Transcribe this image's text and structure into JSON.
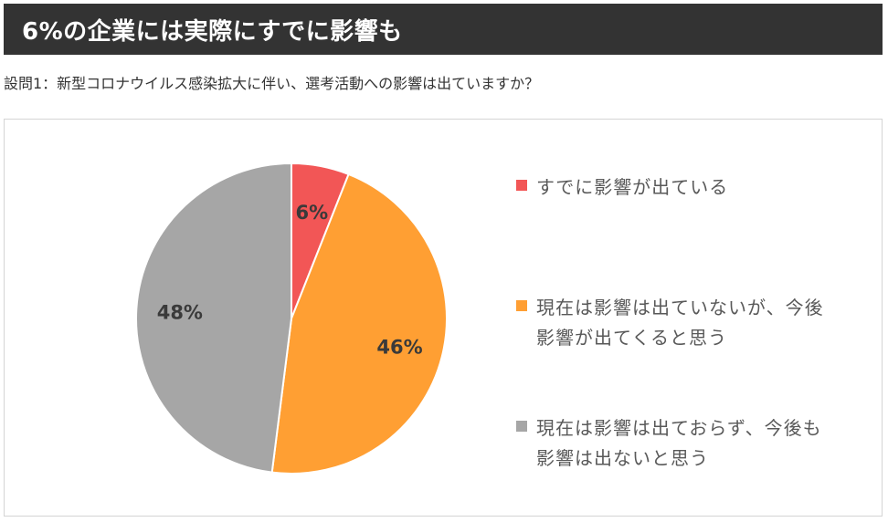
{
  "header": {
    "title": "6%の企業には実際にすでに影響も"
  },
  "question": "設問1：新型コロナウイルス感染拡大に伴い、選考活動への影響は出ていますか？",
  "colors": {
    "header_bg": "#333333",
    "red": "#f25656",
    "orange": "#ff9f33",
    "gray": "#a6a6a6"
  },
  "chart_data": {
    "type": "pie",
    "title": "",
    "categories": [
      "すでに影響が出ている",
      "現在は影響は出ていないが、今後\n影響が出てくると思う",
      "現在は影響は出ておらず、今後も\n影響は出ないと思う"
    ],
    "values": [
      6,
      46,
      48
    ],
    "labels": [
      "6%",
      "46%",
      "48%"
    ],
    "colors": [
      "#f25656",
      "#ff9f33",
      "#a6a6a6"
    ],
    "legend_position": "right",
    "start_angle": "top, clockwise"
  }
}
